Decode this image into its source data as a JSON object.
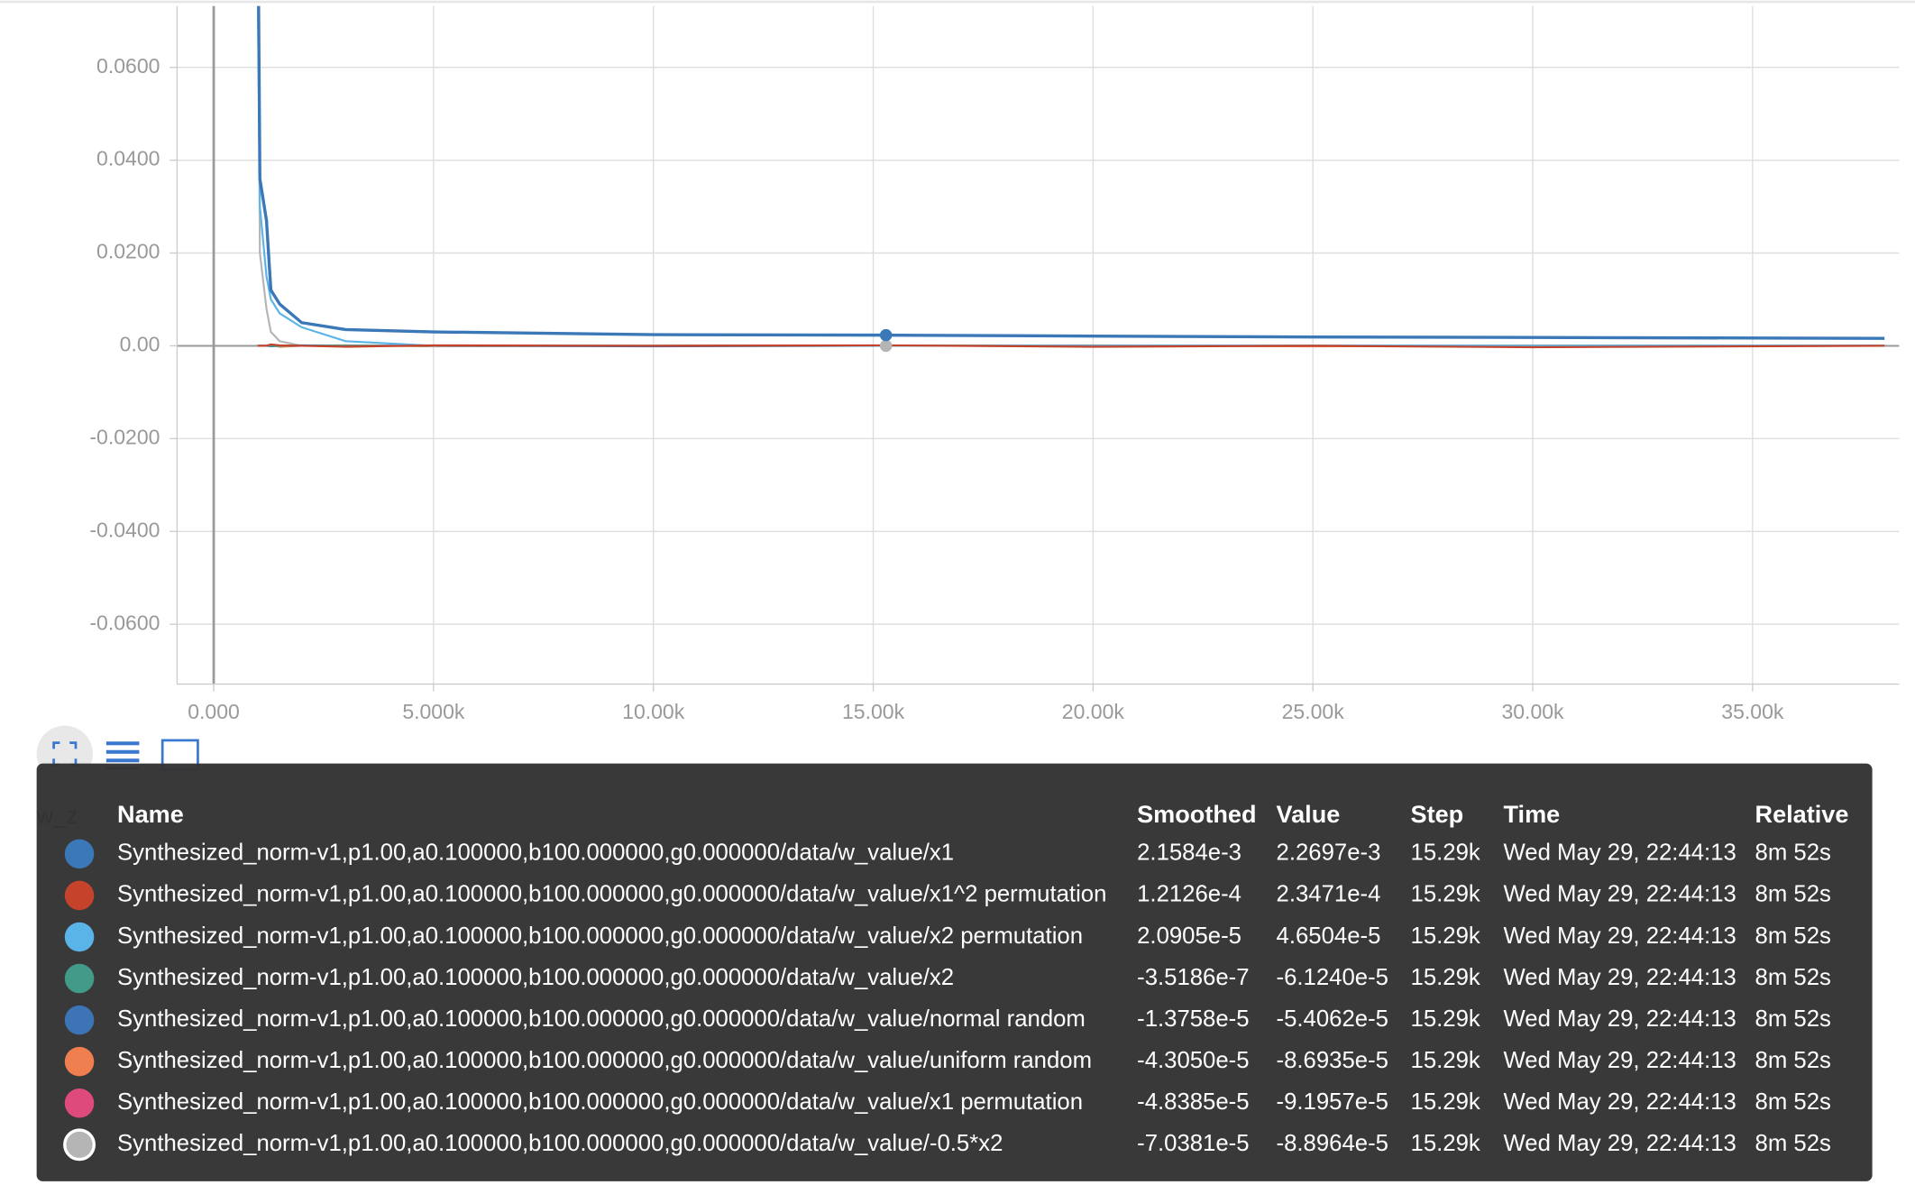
{
  "chart_data": {
    "type": "line",
    "x": [
      1000,
      1050,
      1200,
      1300,
      1500,
      2000,
      3000,
      5000,
      10000,
      15290,
      20000,
      25000,
      30000,
      38000
    ],
    "series": [
      {
        "name": "Synthesized_norm-v1,p1.00,a0.100000,b100.000000,g0.000000/data/w_value/x1",
        "color": "#3a78b8",
        "values": [
          0.1,
          0.036,
          0.027,
          0.012,
          0.009,
          0.005,
          0.0035,
          0.003,
          0.0024,
          0.0023,
          0.0021,
          0.0019,
          0.0018,
          0.0016
        ]
      },
      {
        "name": "Synthesized_norm-v1,p1.00,a0.100000,b100.000000,g0.000000/data/w_value/x1^2 permutation",
        "color": "#c5432b",
        "values": [
          0.0,
          0.0,
          0.0,
          0.0003,
          0.0001,
          0.0,
          -0.0002,
          0.0001,
          0.0,
          0.0001,
          -0.0002,
          0.0,
          -0.0003,
          0.0
        ]
      },
      {
        "name": "Synthesized_norm-v1,p1.00,a0.100000,b100.000000,g0.000000/data/w_value/x2 permutation",
        "color": "#5ab4e8",
        "values": [
          0.08,
          0.03,
          0.015,
          0.01,
          0.007,
          0.004,
          0.001,
          0.0,
          0.0,
          0.0,
          0.0,
          0.0,
          0.0,
          0.0
        ]
      },
      {
        "name": "Synthesized_norm-v1,p1.00,a0.100000,b100.000000,g0.000000/data/w_value/x2",
        "color": "#429a88",
        "values": [
          0.0,
          0.0,
          0.0,
          0.0,
          0.0,
          0.0,
          0.0,
          0.0,
          0.0,
          0.0,
          0.0,
          0.0,
          0.0,
          0.0
        ]
      },
      {
        "name": "Synthesized_norm-v1,p1.00,a0.100000,b100.000000,g0.000000/data/w_value/normal random",
        "color": "#3d74b5",
        "values": [
          0.0,
          0.0,
          0.0,
          -0.0001,
          0.0,
          0.0001,
          0.0,
          0.0,
          -0.0001,
          0.0,
          0.0,
          0.0,
          0.0,
          0.0
        ]
      },
      {
        "name": "Synthesized_norm-v1,p1.00,a0.100000,b100.000000,g0.000000/data/w_value/uniform random",
        "color": "#f07f50",
        "values": [
          0.0,
          0.0,
          0.0,
          0.0002,
          -0.0002,
          0.0,
          0.0001,
          -0.0001,
          0.0,
          0.0,
          0.0001,
          -0.0001,
          0.0,
          0.0
        ]
      },
      {
        "name": "Synthesized_norm-v1,p1.00,a0.100000,b100.000000,g0.000000/data/w_value/x1 permutation",
        "color": "#de4a7c",
        "values": [
          0.0,
          0.0,
          0.0,
          0.0,
          0.0,
          0.0,
          0.0,
          0.0,
          0.0,
          0.0,
          0.0,
          0.0,
          0.0,
          0.0
        ]
      },
      {
        "name": "Synthesized_norm-v1,p1.00,a0.100000,b100.000000,g0.000000/data/w_value/-0.5*x2",
        "color": "#b5b5b5",
        "values": [
          0.1,
          0.02,
          0.008,
          0.003,
          0.001,
          0.0,
          0.0,
          0.0,
          0.0,
          0.0,
          0.0,
          0.0,
          0.0,
          0.0
        ]
      }
    ],
    "xlim": [
      -833,
      38333
    ],
    "ylim": [
      -0.0729,
      0.0732
    ],
    "xticks": [
      {
        "value": 0,
        "label": "0.000"
      },
      {
        "value": 5000,
        "label": "5.000k"
      },
      {
        "value": 10000,
        "label": "10.00k"
      },
      {
        "value": 15000,
        "label": "15.00k"
      },
      {
        "value": 20000,
        "label": "20.00k"
      },
      {
        "value": 25000,
        "label": "25.00k"
      },
      {
        "value": 30000,
        "label": "30.00k"
      },
      {
        "value": 35000,
        "label": "35.00k"
      }
    ],
    "yticks": [
      {
        "value": 0.06,
        "label": "0.0600"
      },
      {
        "value": 0.04,
        "label": "0.0400"
      },
      {
        "value": 0.02,
        "label": "0.0200"
      },
      {
        "value": 0,
        "label": "0.00"
      },
      {
        "value": -0.02,
        "label": "-0.0200"
      },
      {
        "value": -0.04,
        "label": "-0.0400"
      },
      {
        "value": -0.06,
        "label": "-0.0600"
      }
    ],
    "grid": true
  },
  "background_chart": {
    "title": "w_z"
  },
  "tooltip": {
    "columns": [
      "Name",
      "Smoothed",
      "Value",
      "Step",
      "Time",
      "Relative"
    ],
    "rows": [
      [
        "Synthesized_norm-v1,p1.00,a0.100000,b100.000000,g0.000000/data/w_value/x1",
        "2.1584e-3",
        "2.2697e-3",
        "15.29k",
        "Wed May 29, 22:44:13",
        "8m 52s"
      ],
      [
        "Synthesized_norm-v1,p1.00,a0.100000,b100.000000,g0.000000/data/w_value/x1^2 permutation",
        "1.2126e-4",
        "2.3471e-4",
        "15.29k",
        "Wed May 29, 22:44:13",
        "8m 52s"
      ],
      [
        "Synthesized_norm-v1,p1.00,a0.100000,b100.000000,g0.000000/data/w_value/x2 permutation",
        "2.0905e-5",
        "4.6504e-5",
        "15.29k",
        "Wed May 29, 22:44:13",
        "8m 52s"
      ],
      [
        "Synthesized_norm-v1,p1.00,a0.100000,b100.000000,g0.000000/data/w_value/x2",
        "-3.5186e-7",
        "-6.1240e-5",
        "15.29k",
        "Wed May 29, 22:44:13",
        "8m 52s"
      ],
      [
        "Synthesized_norm-v1,p1.00,a0.100000,b100.000000,g0.000000/data/w_value/normal random",
        "-1.3758e-5",
        "-5.4062e-5",
        "15.29k",
        "Wed May 29, 22:44:13",
        "8m 52s"
      ],
      [
        "Synthesized_norm-v1,p1.00,a0.100000,b100.000000,g0.000000/data/w_value/uniform random",
        "-4.3050e-5",
        "-8.6935e-5",
        "15.29k",
        "Wed May 29, 22:44:13",
        "8m 52s"
      ],
      [
        "Synthesized_norm-v1,p1.00,a0.100000,b100.000000,g0.000000/data/w_value/x1 permutation",
        "-4.8385e-5",
        "-9.1957e-5",
        "15.29k",
        "Wed May 29, 22:44:13",
        "8m 52s"
      ],
      [
        "Synthesized_norm-v1,p1.00,a0.100000,b100.000000,g0.000000/data/w_value/-0.5*x2",
        "-7.0381e-5",
        "-8.8964e-5",
        "15.29k",
        "Wed May 29, 22:44:13",
        "8m 52s"
      ]
    ]
  }
}
